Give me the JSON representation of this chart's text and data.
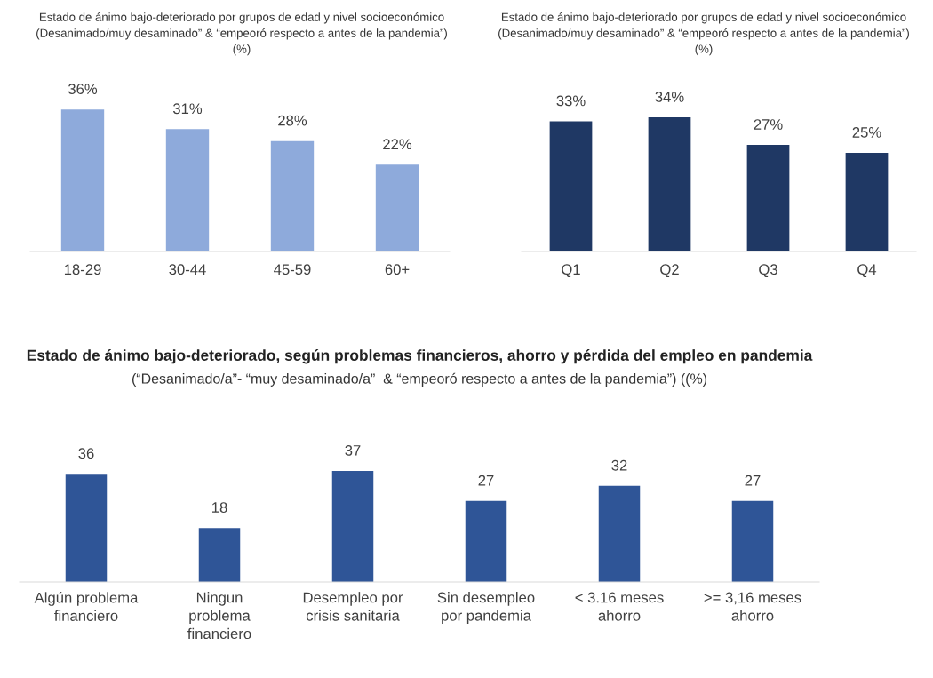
{
  "chart_data": [
    {
      "type": "bar",
      "title": "Estado de ánimo bajo-deteriorado por grupos de edad y nivel socioeconómico",
      "subtitle": "(Desanimado/muy desaminado” & “empeoró respecto a antes de la pandemia”)",
      "annotations": [
        "(%)"
      ],
      "categories": [
        "18-29",
        "30-44",
        "45-59",
        "60+"
      ],
      "values": [
        36,
        31,
        28,
        22
      ],
      "value_labels": [
        "36%",
        "31%",
        "28%",
        "22%"
      ],
      "color": "#8eaadb"
    },
    {
      "type": "bar",
      "title": "Estado de ánimo bajo-deteriorado por grupos de edad y nivel socioeconómico",
      "subtitle": "(Desanimado/muy desaminado” & “empeoró respecto a antes de la pandemia”)",
      "annotations": [
        "(%)"
      ],
      "categories": [
        "Q1",
        "Q2",
        "Q3",
        "Q4"
      ],
      "values": [
        33,
        34,
        27,
        25
      ],
      "value_labels": [
        "33%",
        "34%",
        "27%",
        "25%"
      ],
      "color": "#1f3864"
    },
    {
      "type": "bar",
      "title": "Estado de ánimo bajo-deteriorado, según problemas financieros, ahorro y pérdida del empleo en pandemia",
      "subtitle": "(“Desanimado/a”- “muy desaminado/a”  & “empeoró respecto a antes de la pandemia”) ((%)",
      "categories": [
        "Algún problema\nfinanciero",
        "Ningun\nproblema\nfinanciero",
        "Desempleo por\ncrisis sanitaria",
        "Sin desempleo\npor pandemia",
        "< 3.16 meses\nahorro",
        ">= 3,16 meses\nahorro"
      ],
      "values": [
        36,
        18,
        37,
        27,
        32,
        27
      ],
      "data_labels": true,
      "color": "#2f5597"
    }
  ]
}
